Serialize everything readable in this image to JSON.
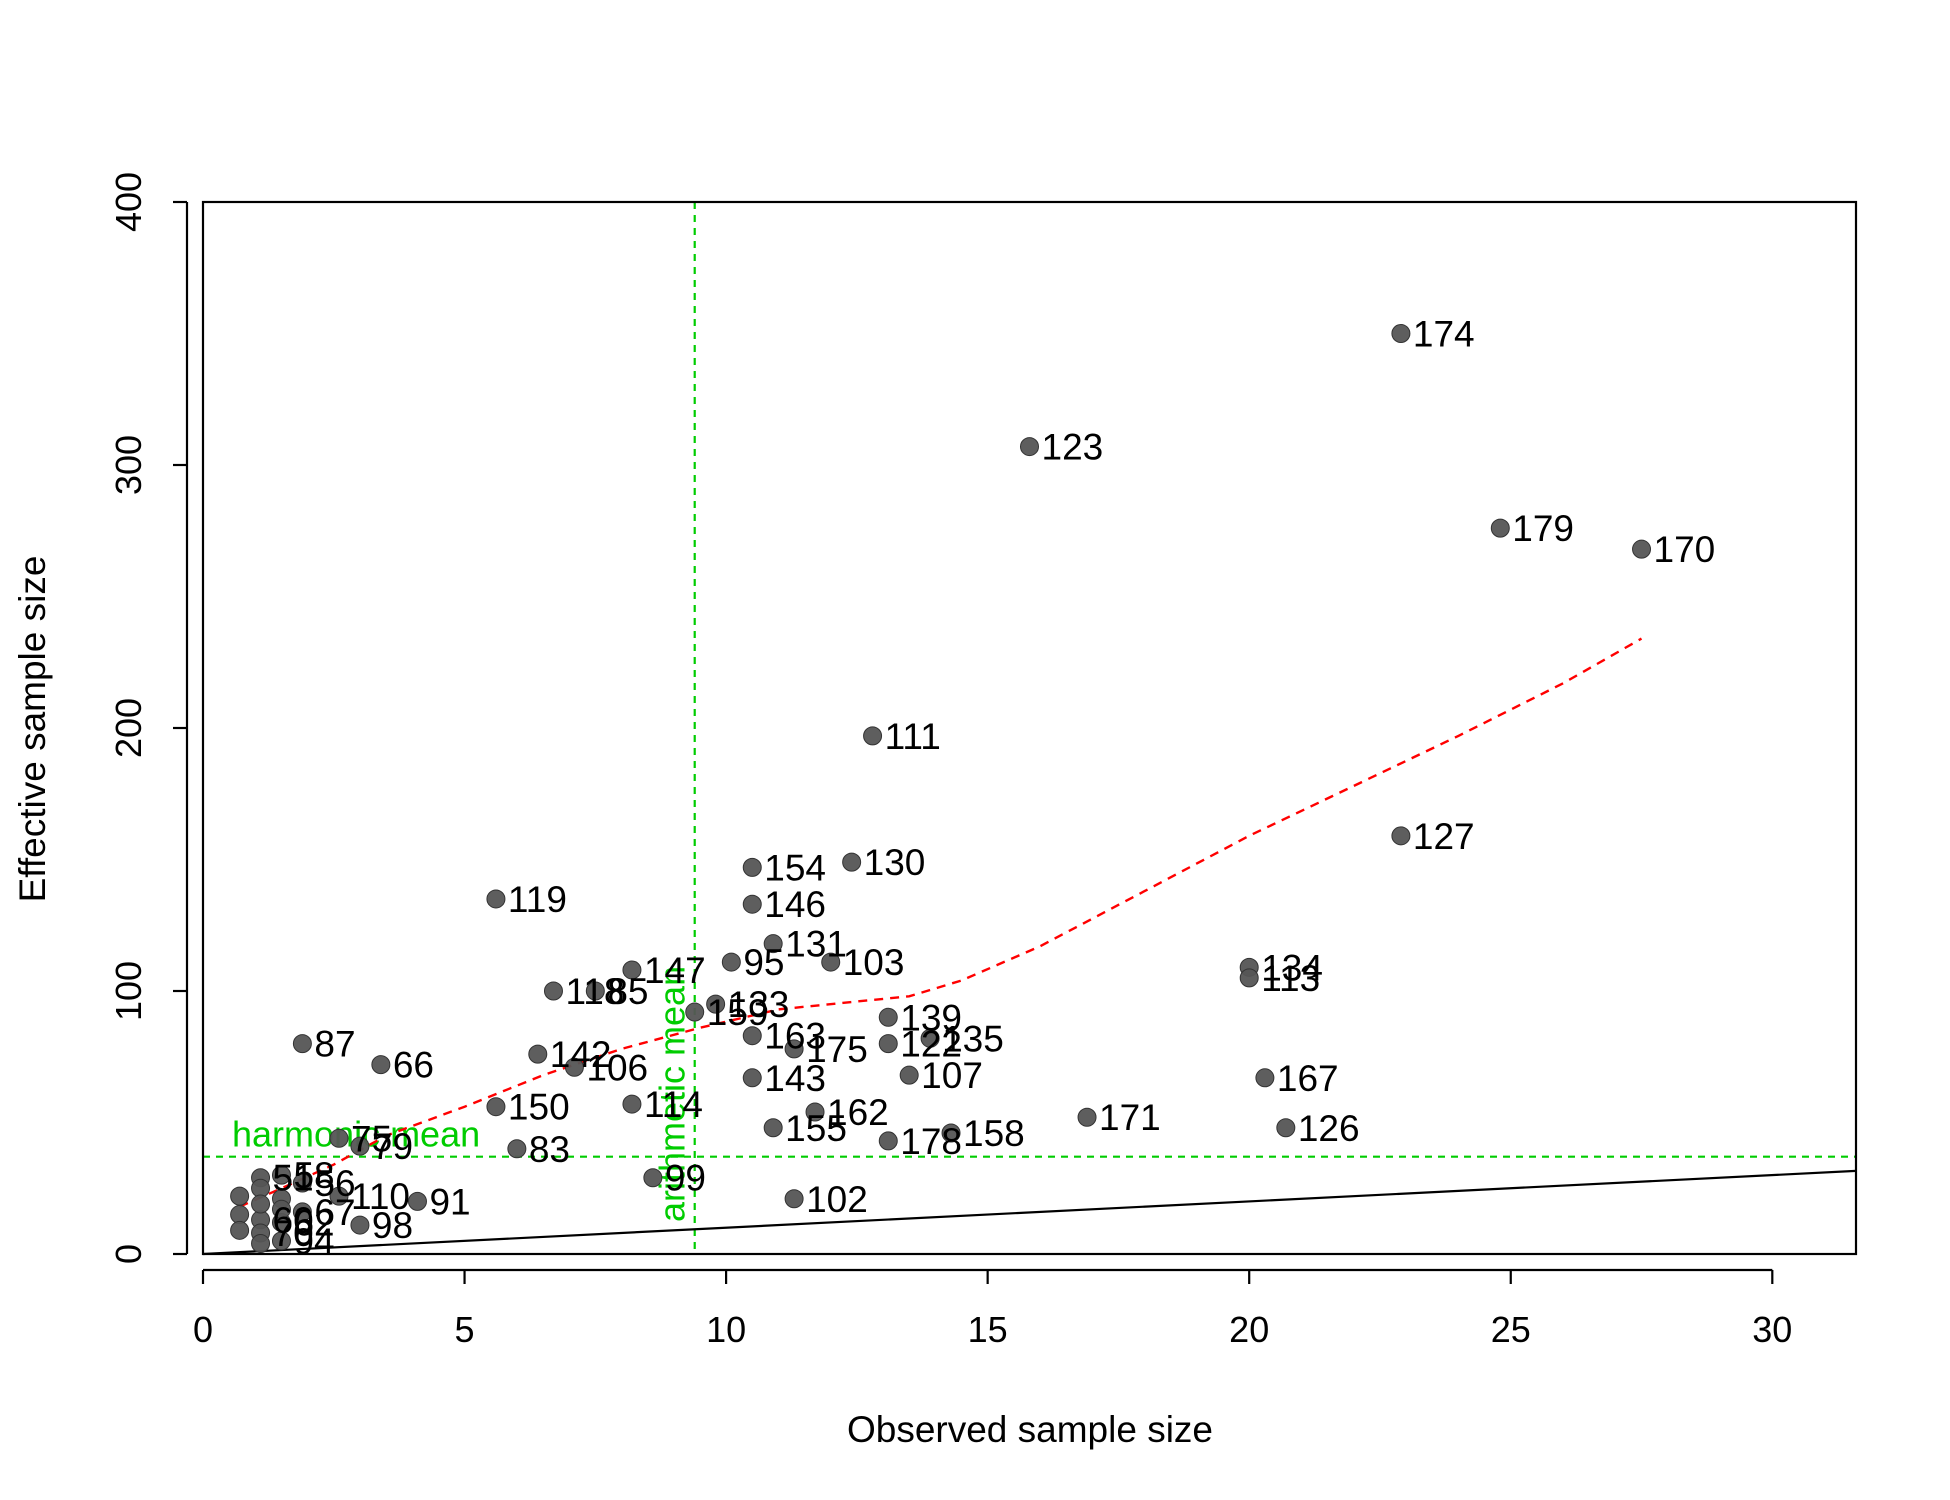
{
  "chart_data": {
    "type": "scatter",
    "title": "",
    "xlabel": "Observed sample size",
    "ylabel": "Effective sample size",
    "xlim": [
      0,
      31.6
    ],
    "ylim": [
      0,
      400
    ],
    "xticks": [
      0,
      5,
      10,
      15,
      20,
      25,
      30
    ],
    "yticks": [
      0,
      100,
      200,
      300,
      400
    ],
    "grid": false,
    "colors": {
      "points": "#555555",
      "lowess": "#ff0000",
      "reference": "#00cc00",
      "identity": "#000000"
    },
    "points": [
      {
        "label": "174",
        "x": 22.9,
        "y": 350
      },
      {
        "label": "123",
        "x": 15.8,
        "y": 307
      },
      {
        "label": "179",
        "x": 24.8,
        "y": 276
      },
      {
        "label": "170",
        "x": 27.5,
        "y": 268
      },
      {
        "label": "111",
        "x": 12.8,
        "y": 197
      },
      {
        "label": "127",
        "x": 22.9,
        "y": 159
      },
      {
        "label": "154",
        "x": 10.5,
        "y": 147
      },
      {
        "label": "130",
        "x": 12.4,
        "y": 149
      },
      {
        "label": "146",
        "x": 10.5,
        "y": 133
      },
      {
        "label": "119",
        "x": 5.6,
        "y": 135
      },
      {
        "label": "131",
        "x": 10.9,
        "y": 118
      },
      {
        "label": "95",
        "x": 10.1,
        "y": 111
      },
      {
        "label": "103",
        "x": 12.0,
        "y": 111
      },
      {
        "label": "147",
        "x": 8.2,
        "y": 108
      },
      {
        "label": "134",
        "x": 20.0,
        "y": 109
      },
      {
        "label": "113",
        "x": 20.0,
        "y": 105
      },
      {
        "label": "118",
        "x": 6.7,
        "y": 100
      },
      {
        "label": "85",
        "x": 7.5,
        "y": 100
      },
      {
        "label": "133",
        "x": 9.8,
        "y": 95
      },
      {
        "label": "159",
        "x": 9.4,
        "y": 92
      },
      {
        "label": "139",
        "x": 13.1,
        "y": 90
      },
      {
        "label": "163",
        "x": 10.5,
        "y": 83
      },
      {
        "label": "135",
        "x": 13.9,
        "y": 82
      },
      {
        "label": "122",
        "x": 13.1,
        "y": 80
      },
      {
        "label": "175",
        "x": 11.3,
        "y": 78
      },
      {
        "label": "87",
        "x": 1.9,
        "y": 80
      },
      {
        "label": "142",
        "x": 6.4,
        "y": 76
      },
      {
        "label": "66",
        "x": 3.4,
        "y": 72
      },
      {
        "label": "106",
        "x": 7.1,
        "y": 71
      },
      {
        "label": "107",
        "x": 13.5,
        "y": 68
      },
      {
        "label": "143",
        "x": 10.5,
        "y": 67
      },
      {
        "label": "167",
        "x": 20.3,
        "y": 67
      },
      {
        "label": "114",
        "x": 8.2,
        "y": 57
      },
      {
        "label": "150",
        "x": 5.6,
        "y": 56
      },
      {
        "label": "162",
        "x": 11.7,
        "y": 54
      },
      {
        "label": "171",
        "x": 16.9,
        "y": 52
      },
      {
        "label": "155",
        "x": 10.9,
        "y": 48
      },
      {
        "label": "126",
        "x": 20.7,
        "y": 48
      },
      {
        "label": "158",
        "x": 14.3,
        "y": 46
      },
      {
        "label": "178",
        "x": 13.1,
        "y": 43
      },
      {
        "label": "75",
        "x": 2.6,
        "y": 44
      },
      {
        "label": "79",
        "x": 3.0,
        "y": 41
      },
      {
        "label": "83",
        "x": 6.0,
        "y": 40
      },
      {
        "label": "99",
        "x": 8.6,
        "y": 29
      },
      {
        "label": "102",
        "x": 11.3,
        "y": 21
      },
      {
        "label": "110",
        "x": 2.6,
        "y": 22
      },
      {
        "label": "91",
        "x": 4.1,
        "y": 20
      },
      {
        "label": "98",
        "x": 3.0,
        "y": 11
      },
      {
        "label": "67",
        "x": 1.9,
        "y": 16
      },
      {
        "label": "58",
        "x": 1.5,
        "y": 30
      },
      {
        "label": "56",
        "x": 1.9,
        "y": 27
      },
      {
        "label": "51",
        "x": 1.1,
        "y": 29
      },
      {
        "label": "60",
        "x": 1.1,
        "y": 13
      },
      {
        "label": "62",
        "x": 1.5,
        "y": 12
      },
      {
        "label": "70",
        "x": 1.1,
        "y": 8
      },
      {
        "label": "94",
        "x": 1.5,
        "y": 5
      },
      {
        "label": "",
        "x": 0.7,
        "y": 22
      },
      {
        "label": "",
        "x": 0.7,
        "y": 15
      },
      {
        "label": "",
        "x": 0.7,
        "y": 9
      },
      {
        "label": "",
        "x": 1.1,
        "y": 25
      },
      {
        "label": "",
        "x": 1.1,
        "y": 19
      },
      {
        "label": "",
        "x": 1.5,
        "y": 21
      },
      {
        "label": "",
        "x": 1.1,
        "y": 4
      },
      {
        "label": "",
        "x": 1.5,
        "y": 17
      }
    ],
    "lowess": [
      {
        "x": 0.7,
        "y": 18
      },
      {
        "x": 1.5,
        "y": 25
      },
      {
        "x": 2.5,
        "y": 34
      },
      {
        "x": 3.5,
        "y": 45
      },
      {
        "x": 5.0,
        "y": 56
      },
      {
        "x": 6.5,
        "y": 68
      },
      {
        "x": 8.0,
        "y": 78
      },
      {
        "x": 9.5,
        "y": 86
      },
      {
        "x": 11.0,
        "y": 93
      },
      {
        "x": 12.5,
        "y": 96
      },
      {
        "x": 13.5,
        "y": 98
      },
      {
        "x": 14.5,
        "y": 104
      },
      {
        "x": 16.0,
        "y": 117
      },
      {
        "x": 18.0,
        "y": 138
      },
      {
        "x": 20.0,
        "y": 159
      },
      {
        "x": 22.0,
        "y": 178
      },
      {
        "x": 24.0,
        "y": 197
      },
      {
        "x": 26.0,
        "y": 217
      },
      {
        "x": 27.5,
        "y": 234
      }
    ],
    "harmonic_mean": {
      "label": "harmonic mean",
      "y": 37
    },
    "arithmetic_mean": {
      "label": "arithmetic mean",
      "x": 9.4
    }
  }
}
